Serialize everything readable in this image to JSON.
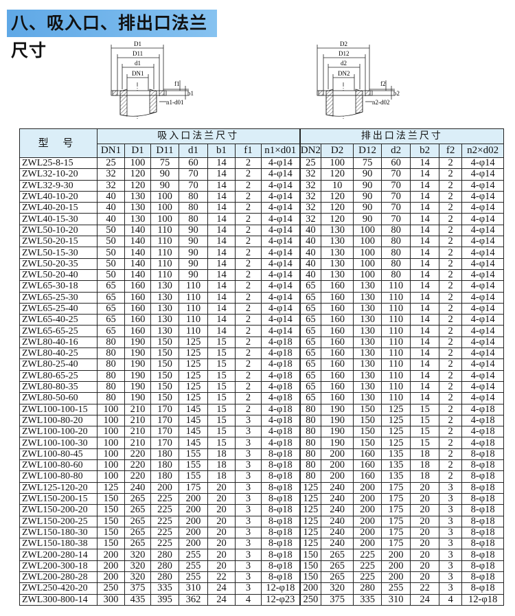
{
  "title": "八、吸入口、排出口法兰尺寸",
  "diagrams": {
    "inlet": {
      "labels": [
        "D1",
        "D11",
        "d1",
        "DN1",
        "f1",
        "b1",
        "n1-d01"
      ]
    },
    "outlet": {
      "labels": [
        "D2",
        "D12",
        "d2",
        "DN2",
        "f2",
        "b2",
        "n2-d02"
      ]
    }
  },
  "table": {
    "model_header": "型 号",
    "inlet_group": "吸入口法兰尺寸",
    "outlet_group": "排出口法兰尺寸",
    "columns": [
      "DN1",
      "D1",
      "D11",
      "d1",
      "b1",
      "f1",
      "n1×d01",
      "DN2",
      "D2",
      "D12",
      "d2",
      "b2",
      "f2",
      "n2×d02"
    ],
    "rows": [
      [
        "ZWL25-8-15",
        "25",
        "100",
        "75",
        "60",
        "14",
        "2",
        "4-φ14",
        "25",
        "100",
        "75",
        "60",
        "14",
        "2",
        "4-φ14"
      ],
      [
        "ZWL32-10-20",
        "32",
        "120",
        "90",
        "70",
        "14",
        "2",
        "4-φ14",
        "32",
        "120",
        "90",
        "70",
        "14",
        "2",
        "4-φ14"
      ],
      [
        "ZWL32-9-30",
        "32",
        "120",
        "90",
        "70",
        "14",
        "2",
        "4-φ14",
        "32",
        "10",
        "90",
        "70",
        "14",
        "2",
        "4-φ14"
      ],
      [
        "ZWL40-10-20",
        "40",
        "130",
        "100",
        "80",
        "14",
        "2",
        "4-φ14",
        "32",
        "120",
        "90",
        "70",
        "14",
        "2",
        "4-φ14"
      ],
      [
        "ZWL40-20-15",
        "40",
        "130",
        "100",
        "80",
        "14",
        "2",
        "4-φ14",
        "32",
        "120",
        "90",
        "70",
        "14",
        "2",
        "4-φ14"
      ],
      [
        "ZWL40-15-30",
        "40",
        "130",
        "100",
        "80",
        "14",
        "2",
        "4-φ14",
        "32",
        "120",
        "90",
        "70",
        "14",
        "2",
        "4-φ14"
      ],
      [
        "ZWL50-10-20",
        "50",
        "140",
        "110",
        "90",
        "14",
        "2",
        "4-φ14",
        "40",
        "130",
        "100",
        "80",
        "14",
        "2",
        "4-φ14"
      ],
      [
        "ZWL50-20-15",
        "50",
        "140",
        "110",
        "90",
        "14",
        "2",
        "4-φ14",
        "40",
        "130",
        "100",
        "80",
        "14",
        "2",
        "4-φ14"
      ],
      [
        "ZWL50-15-30",
        "50",
        "140",
        "110",
        "90",
        "14",
        "2",
        "4-φ14",
        "40",
        "130",
        "100",
        "80",
        "14",
        "2",
        "4-φ14"
      ],
      [
        "ZWL50-20-35",
        "50",
        "140",
        "110",
        "90",
        "14",
        "2",
        "4-φ14",
        "40",
        "130",
        "100",
        "80",
        "14",
        "2",
        "4-φ14"
      ],
      [
        "ZWL50-20-40",
        "50",
        "140",
        "110",
        "90",
        "14",
        "2",
        "4-φ14",
        "40",
        "130",
        "100",
        "80",
        "14",
        "2",
        "4-φ14"
      ],
      [
        "ZWL65-30-18",
        "65",
        "160",
        "130",
        "110",
        "14",
        "2",
        "4-φ14",
        "65",
        "160",
        "130",
        "110",
        "14",
        "2",
        "4-φ14"
      ],
      [
        "ZWL65-25-30",
        "65",
        "160",
        "130",
        "110",
        "14",
        "2",
        "4-φ14",
        "65",
        "160",
        "130",
        "110",
        "14",
        "2",
        "4-φ14"
      ],
      [
        "ZWL65-25-40",
        "65",
        "160",
        "130",
        "110",
        "14",
        "2",
        "4-φ14",
        "65",
        "160",
        "130",
        "110",
        "14",
        "2",
        "4-φ14"
      ],
      [
        "ZWL65-40-25",
        "65",
        "160",
        "130",
        "110",
        "14",
        "2",
        "4-φ14",
        "65",
        "160",
        "130",
        "110",
        "14",
        "2",
        "4-φ14"
      ],
      [
        "ZWL65-65-25",
        "65",
        "160",
        "130",
        "110",
        "14",
        "2",
        "4-φ14",
        "65",
        "160",
        "130",
        "110",
        "14",
        "2",
        "4-φ14"
      ],
      [
        "ZWL80-40-16",
        "80",
        "190",
        "150",
        "125",
        "15",
        "2",
        "4-φ18",
        "65",
        "160",
        "130",
        "110",
        "14",
        "2",
        "4-φ14"
      ],
      [
        "ZWL80-40-25",
        "80",
        "190",
        "150",
        "125",
        "15",
        "2",
        "4-φ18",
        "65",
        "160",
        "130",
        "110",
        "14",
        "2",
        "4-φ14"
      ],
      [
        "ZWL80-25-40",
        "80",
        "190",
        "150",
        "125",
        "15",
        "2",
        "4-φ18",
        "65",
        "160",
        "130",
        "110",
        "14",
        "2",
        "4-φ14"
      ],
      [
        "ZWL80-65-25",
        "80",
        "190",
        "150",
        "125",
        "15",
        "2",
        "4-φ18",
        "65",
        "160",
        "130",
        "110",
        "14",
        "2",
        "4-φ14"
      ],
      [
        "ZWL80-80-35",
        "80",
        "190",
        "150",
        "125",
        "15",
        "2",
        "4-φ18",
        "65",
        "160",
        "130",
        "110",
        "14",
        "2",
        "4-φ14"
      ],
      [
        "ZWL80-50-60",
        "80",
        "190",
        "150",
        "125",
        "15",
        "2",
        "4-φ18",
        "65",
        "160",
        "130",
        "110",
        "14",
        "2",
        "4-φ14"
      ],
      [
        "ZWL100-100-15",
        "100",
        "210",
        "170",
        "145",
        "15",
        "2",
        "4-φ18",
        "80",
        "190",
        "150",
        "125",
        "15",
        "2",
        "4-φ18"
      ],
      [
        "ZWL100-80-20",
        "100",
        "210",
        "170",
        "145",
        "15",
        "3",
        "4-φ18",
        "80",
        "190",
        "150",
        "125",
        "15",
        "2",
        "4-φ18"
      ],
      [
        "ZWL100-100-20",
        "100",
        "210",
        "170",
        "145",
        "15",
        "3",
        "4-φ18",
        "80",
        "190",
        "150",
        "125",
        "15",
        "2",
        "4-φ18"
      ],
      [
        "ZWL100-100-30",
        "100",
        "210",
        "170",
        "145",
        "15",
        "3",
        "4-φ18",
        "80",
        "190",
        "150",
        "125",
        "15",
        "2",
        "4-φ18"
      ],
      [
        "ZWL100-80-45",
        "100",
        "220",
        "180",
        "155",
        "18",
        "3",
        "8-φ18",
        "80",
        "200",
        "160",
        "135",
        "18",
        "2",
        "8-φ18"
      ],
      [
        "ZWL100-80-60",
        "100",
        "220",
        "180",
        "155",
        "18",
        "3",
        "8-φ18",
        "80",
        "200",
        "160",
        "135",
        "18",
        "2",
        "8-φ18"
      ],
      [
        "ZWL100-80-80",
        "100",
        "220",
        "180",
        "155",
        "18",
        "3",
        "8-φ18",
        "80",
        "200",
        "160",
        "135",
        "18",
        "2",
        "8-φ18"
      ],
      [
        "ZWL125-120-20",
        "125",
        "240",
        "200",
        "175",
        "20",
        "3",
        "8-φ18",
        "125",
        "240",
        "200",
        "175",
        "20",
        "3",
        "8-φ18"
      ],
      [
        "ZWL150-200-15",
        "150",
        "265",
        "225",
        "200",
        "20",
        "3",
        "8-φ18",
        "125",
        "240",
        "200",
        "175",
        "20",
        "3",
        "8-φ18"
      ],
      [
        "ZWL150-200-20",
        "150",
        "265",
        "225",
        "200",
        "20",
        "3",
        "8-φ18",
        "125",
        "240",
        "200",
        "175",
        "20",
        "3",
        "8-φ18"
      ],
      [
        "ZWL150-200-25",
        "150",
        "265",
        "225",
        "200",
        "20",
        "3",
        "8-φ18",
        "125",
        "240",
        "200",
        "175",
        "20",
        "3",
        "8-φ18"
      ],
      [
        "ZWL150-180-30",
        "150",
        "265",
        "225",
        "200",
        "20",
        "3",
        "8-φ18",
        "125",
        "240",
        "200",
        "175",
        "20",
        "3",
        "8-φ18"
      ],
      [
        "ZWL150-180-38",
        "150",
        "265",
        "225",
        "200",
        "20",
        "3",
        "8-φ18",
        "125",
        "240",
        "200",
        "175",
        "20",
        "3",
        "8-φ18"
      ],
      [
        "ZWL200-280-14",
        "200",
        "320",
        "280",
        "255",
        "20",
        "3",
        "8-φ18",
        "150",
        "265",
        "225",
        "200",
        "20",
        "3",
        "8-φ18"
      ],
      [
        "ZWL200-300-18",
        "200",
        "320",
        "280",
        "255",
        "20",
        "3",
        "8-φ18",
        "150",
        "265",
        "225",
        "200",
        "20",
        "3",
        "8-φ18"
      ],
      [
        "ZWL200-280-28",
        "200",
        "320",
        "280",
        "255",
        "22",
        "3",
        "8-φ18",
        "150",
        "265",
        "225",
        "200",
        "20",
        "3",
        "8-φ18"
      ],
      [
        "ZWL250-420-20",
        "250",
        "375",
        "335",
        "310",
        "24",
        "3",
        "12-φ18",
        "200",
        "320",
        "280",
        "255",
        "22",
        "3",
        "8-φ18"
      ],
      [
        "ZWL300-800-14",
        "300",
        "435",
        "395",
        "362",
        "24",
        "4",
        "12-φ23",
        "250",
        "375",
        "335",
        "310",
        "24",
        "4",
        "12-φ18"
      ]
    ]
  }
}
